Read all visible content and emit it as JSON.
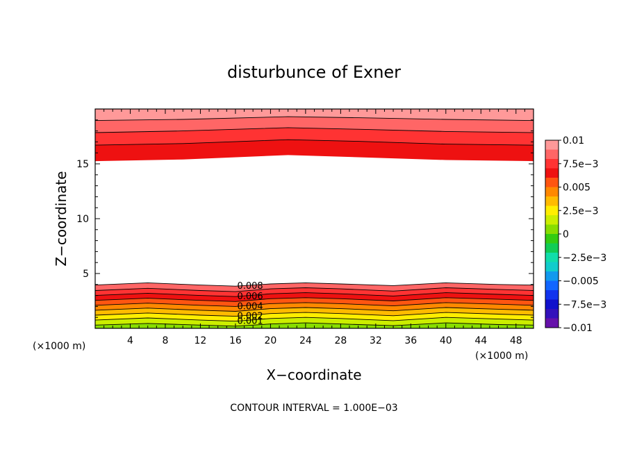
{
  "chart_data": {
    "type": "contour",
    "title": "disturbunce of Exner",
    "xlabel": "X−coordinate",
    "ylabel": "Z−coordinate",
    "x_unit_label": "(×1000 m)",
    "y_unit_label": "(×1000 m)",
    "xlim": [
      0,
      50
    ],
    "ylim": [
      0,
      20
    ],
    "x_ticks": [
      4,
      8,
      12,
      16,
      20,
      24,
      28,
      32,
      36,
      40,
      44,
      48
    ],
    "x_tick_labels": [
      "4",
      "8",
      "12",
      "16",
      "20",
      "24",
      "28",
      "32",
      "36",
      "40",
      "44",
      "48"
    ],
    "y_ticks": [
      5,
      10,
      15
    ],
    "y_tick_labels": [
      "5",
      "10",
      "15"
    ],
    "contour_interval_text": "CONTOUR INTERVAL = 1.000E−03",
    "contour_interval": 0.001,
    "contour_labels": [
      "0.008",
      "0.006",
      "0.004",
      "0.002",
      "0.001"
    ],
    "colorbar": {
      "min": -0.01,
      "max": 0.01,
      "tick_labels": [
        "0.01",
        "7.5e−3",
        "0.005",
        "2.5e−3",
        "0",
        "−2.5e−3",
        "−0.005",
        "−7.5e−3",
        "−0.01"
      ],
      "tick_values": [
        0.01,
        0.0075,
        0.005,
        0.0025,
        0,
        -0.0025,
        -0.005,
        -0.0075,
        -0.01
      ],
      "colors": [
        "#ff9999",
        "#ff6666",
        "#ff3333",
        "#ee1111",
        "#ff5511",
        "#ff8800",
        "#ffbb00",
        "#ffee00",
        "#ccee00",
        "#88dd00",
        "#33cc11",
        "#11cc55",
        "#11ddaa",
        "#11cccc",
        "#1199ee",
        "#1166ff",
        "#1133ee",
        "#1111cc",
        "#3311bb",
        "#6611aa"
      ]
    },
    "series": [
      {
        "region": "lower",
        "levels": [
          0.008,
          0.007,
          0.006,
          0.005,
          0.004,
          0.003,
          0.002,
          0.001,
          0.0
        ],
        "x": [
          0,
          6,
          12,
          16,
          20,
          24,
          28,
          34,
          40,
          46,
          50
        ],
        "level_heights_km": [
          [
            3.95,
            4.15,
            3.95,
            3.85,
            4.05,
            4.15,
            4.05,
            3.9,
            4.15,
            4.0,
            3.95
          ],
          [
            3.45,
            3.65,
            3.45,
            3.35,
            3.6,
            3.7,
            3.6,
            3.4,
            3.7,
            3.55,
            3.45
          ],
          [
            3.0,
            3.2,
            3.0,
            2.9,
            3.15,
            3.25,
            3.15,
            2.95,
            3.25,
            3.1,
            3.0
          ],
          [
            2.55,
            2.75,
            2.55,
            2.45,
            2.7,
            2.8,
            2.7,
            2.5,
            2.8,
            2.65,
            2.55
          ],
          [
            2.1,
            2.3,
            2.1,
            2.0,
            2.25,
            2.35,
            2.25,
            2.05,
            2.35,
            2.2,
            2.1
          ],
          [
            1.65,
            1.85,
            1.65,
            1.55,
            1.8,
            1.9,
            1.8,
            1.6,
            1.9,
            1.75,
            1.65
          ],
          [
            1.2,
            1.4,
            1.2,
            1.1,
            1.35,
            1.45,
            1.35,
            1.15,
            1.45,
            1.3,
            1.2
          ],
          [
            0.75,
            0.95,
            0.75,
            0.65,
            0.9,
            1.0,
            0.9,
            0.7,
            1.0,
            0.85,
            0.75
          ],
          [
            0.3,
            0.45,
            0.3,
            0.2,
            0.4,
            0.5,
            0.4,
            0.25,
            0.5,
            0.35,
            0.3
          ]
        ]
      },
      {
        "region": "upper",
        "levels": [
          0.006,
          0.007,
          0.008,
          0.009
        ],
        "x": [
          0,
          10,
          22,
          30,
          40,
          50
        ],
        "level_heights_km": [
          [
            15.25,
            15.4,
            15.8,
            15.6,
            15.35,
            15.25
          ],
          [
            16.7,
            16.85,
            17.2,
            17.05,
            16.8,
            16.7
          ],
          [
            17.85,
            18.0,
            18.3,
            18.15,
            17.95,
            17.85
          ],
          [
            18.95,
            19.05,
            19.3,
            19.2,
            19.05,
            18.95
          ]
        ]
      }
    ]
  }
}
